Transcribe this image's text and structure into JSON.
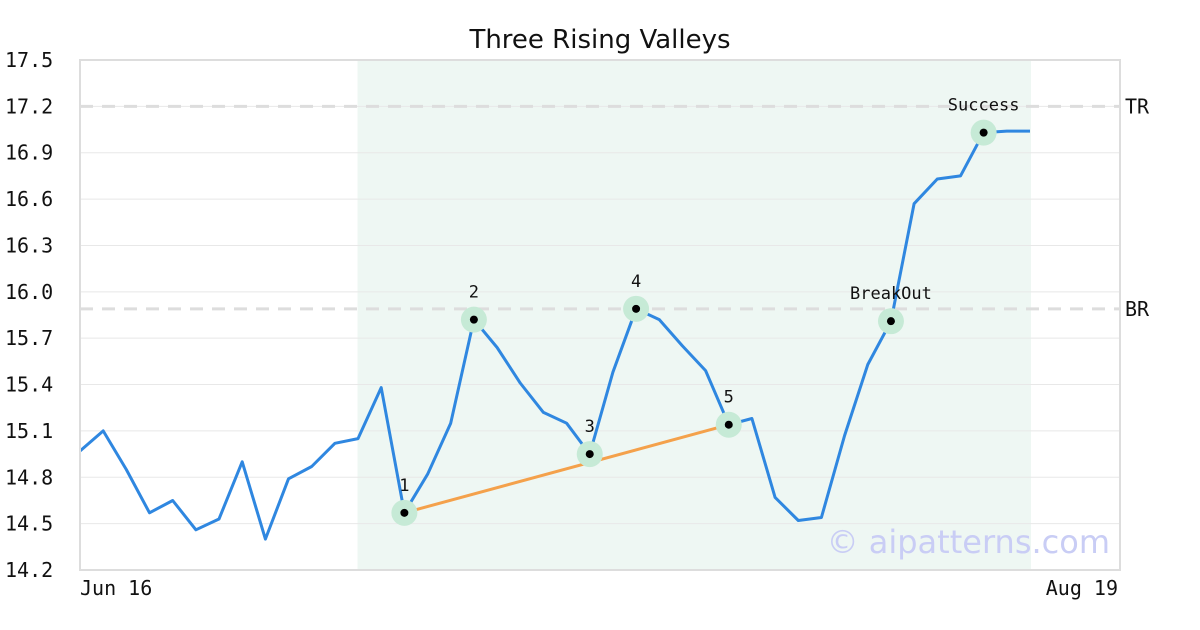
{
  "chart_data": {
    "type": "line",
    "title": "Three Rising Valleys",
    "x_start_label": "Jun 16",
    "x_end_label": "Aug 19",
    "ylim": [
      14.2,
      17.5
    ],
    "y_ticks": [
      "14.2",
      "14.5",
      "14.8",
      "15.1",
      "15.4",
      "15.7",
      "16.0",
      "16.3",
      "16.6",
      "16.9",
      "17.2",
      "17.5"
    ],
    "grid": true,
    "series": [
      {
        "values": [
          14.97,
          15.1,
          14.85,
          14.57,
          14.65,
          14.46,
          14.53,
          14.9,
          14.4,
          14.79,
          14.87,
          15.02,
          15.05,
          15.38,
          14.57,
          14.82,
          15.15,
          15.82,
          15.64,
          15.41,
          15.22,
          15.15,
          14.95,
          15.48,
          15.89,
          15.82,
          15.65,
          15.49,
          15.14,
          15.18,
          14.67,
          14.52,
          14.54,
          15.07,
          15.53,
          15.81,
          16.57,
          16.73,
          16.75,
          17.03,
          17.04,
          17.04
        ]
      }
    ],
    "levels": [
      {
        "label": "TR",
        "value": 17.2
      },
      {
        "label": "BR",
        "value": 15.89
      }
    ],
    "pattern_region": {
      "from_index": 12,
      "to_index": 41
    },
    "points": [
      {
        "label": "1",
        "index": 14,
        "value": 14.57
      },
      {
        "label": "2",
        "index": 17,
        "value": 15.82
      },
      {
        "label": "3",
        "index": 22,
        "value": 14.95
      },
      {
        "label": "4",
        "index": 24,
        "value": 15.89
      },
      {
        "label": "5",
        "index": 28,
        "value": 15.14
      },
      {
        "label": "BreakOut",
        "index": 35,
        "value": 15.81
      },
      {
        "label": "Success",
        "index": 39,
        "value": 17.03
      }
    ],
    "trendline": {
      "from_point": 0,
      "to_point": 4
    },
    "watermark": "© aipatterns.com",
    "colors": {
      "line": "#2f87e0",
      "trendline": "#f4a14b",
      "region": "#eef7f3",
      "marker_halo": "#c6ead6",
      "marker": "#000000",
      "grid": "#e8e8e8",
      "level": "#dddddd",
      "frame": "#dddddd"
    }
  }
}
